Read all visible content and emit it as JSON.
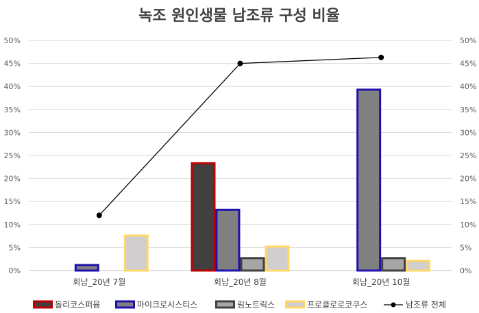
{
  "chart_data": {
    "type": "bar",
    "title": "녹조 원인생물 남조류 구성 비율",
    "categories": [
      "회남_20년 7월",
      "회남_20년 8월",
      "회남_20년 10월"
    ],
    "ylim": [
      0,
      50
    ],
    "y_ticks": [
      "0%",
      "5%",
      "10%",
      "15%",
      "20%",
      "25%",
      "30%",
      "35%",
      "40%",
      "45%",
      "50%"
    ],
    "secondary_y_ticks": [
      "0%",
      "5%",
      "10%",
      "15%",
      "20%",
      "25%",
      "30%",
      "35%",
      "40%",
      "45%",
      "50%"
    ],
    "grid": true,
    "legend_position": "bottom",
    "series": [
      {
        "name": "돌리코스퍼뮴",
        "type": "bar",
        "fill": "#404040",
        "stroke": "#c00000",
        "values": [
          0,
          23.3,
          0
        ]
      },
      {
        "name": "마이크로시스티스",
        "type": "bar",
        "fill": "#808080",
        "stroke": "#2010b0",
        "values": [
          1.2,
          13.2,
          39.3
        ]
      },
      {
        "name": "림노트릭스",
        "type": "bar",
        "fill": "#a6a6a6",
        "stroke": "#404040",
        "values": [
          0,
          2.7,
          2.7
        ]
      },
      {
        "name": "프로클로로코쿠스",
        "type": "bar",
        "fill": "#d0cece",
        "stroke": "#ffd966",
        "values": [
          7.6,
          5.2,
          2.1
        ]
      },
      {
        "name": "남조류 전체",
        "type": "line",
        "color": "#000000",
        "values": [
          12.0,
          45.0,
          46.3
        ]
      }
    ]
  }
}
